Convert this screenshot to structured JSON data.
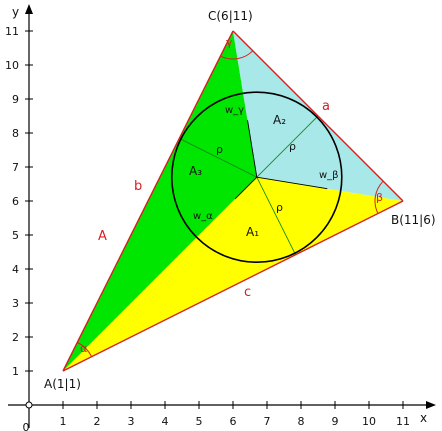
{
  "axes": {
    "x_name": "x",
    "y_name": "y",
    "origin_label": "0",
    "x_ticks": [
      "1",
      "2",
      "3",
      "4",
      "5",
      "6",
      "7",
      "8",
      "9",
      "10",
      "11"
    ],
    "y_ticks": [
      "1",
      "2",
      "3",
      "4",
      "5",
      "6",
      "7",
      "8",
      "9",
      "10",
      "11"
    ]
  },
  "vertices": {
    "A": {
      "label": "A(1|1)",
      "x": 1,
      "y": 1
    },
    "B": {
      "label": "B(11|6)",
      "x": 11,
      "y": 6
    },
    "C": {
      "label": "C(6|11)",
      "x": 6,
      "y": 11
    }
  },
  "sides": {
    "a": "a",
    "b": "b",
    "c": "c"
  },
  "region_label": "A",
  "subareas": {
    "A1": "A₁",
    "A2": "A₂",
    "A3": "A₃"
  },
  "incircle": {
    "cx": 6.7,
    "cy": 6.7,
    "r": 2.5,
    "radius_label": "ρ"
  },
  "bisectors": {
    "wa": "w_α",
    "wb": "w_β",
    "wc": "w_γ"
  },
  "angles": {
    "alpha": "α",
    "beta": "β",
    "gamma": "γ"
  },
  "colors": {
    "green": "#00e600",
    "yellow": "#ffff00",
    "cyan": "#a8e8e8",
    "red": "#d62020",
    "outline": "#000000"
  }
}
